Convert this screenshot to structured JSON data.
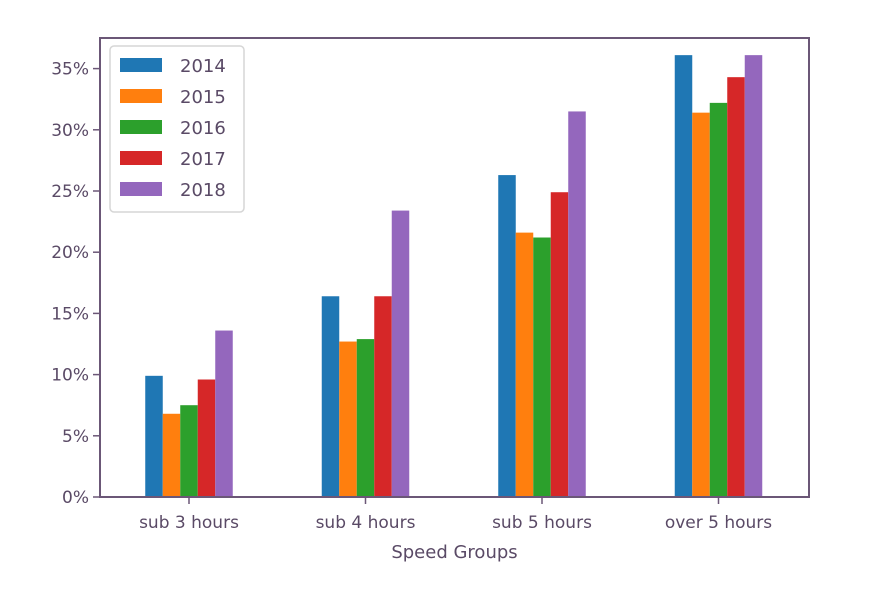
{
  "chart_data": {
    "type": "bar",
    "title": "",
    "xlabel": "Speed Groups",
    "ylabel": "",
    "categories": [
      "sub 3 hours",
      "sub 4 hours",
      "sub 5 hours",
      "over 5 hours"
    ],
    "series": [
      {
        "name": "2014",
        "color": "#1f77b4",
        "values": [
          9.9,
          16.4,
          26.3,
          36.1
        ]
      },
      {
        "name": "2015",
        "color": "#ff7f0e",
        "values": [
          6.8,
          12.7,
          21.6,
          31.4
        ]
      },
      {
        "name": "2016",
        "color": "#2ca02c",
        "values": [
          7.5,
          12.9,
          21.2,
          32.2
        ]
      },
      {
        "name": "2017",
        "color": "#d62728",
        "values": [
          9.6,
          16.4,
          24.9,
          34.3
        ]
      },
      {
        "name": "2018",
        "color": "#9467bd",
        "values": [
          13.6,
          23.4,
          31.5,
          36.1
        ]
      }
    ],
    "ylim": [
      0,
      37.5
    ],
    "yticks": [
      {
        "value": 0,
        "label": "0%"
      },
      {
        "value": 5,
        "label": "5%"
      },
      {
        "value": 10,
        "label": "10%"
      },
      {
        "value": 15,
        "label": "15%"
      },
      {
        "value": 20,
        "label": "20%"
      },
      {
        "value": 25,
        "label": "25%"
      },
      {
        "value": 30,
        "label": "30%"
      },
      {
        "value": 35,
        "label": "35%"
      }
    ],
    "grid": false,
    "legend_position": "top-left"
  }
}
